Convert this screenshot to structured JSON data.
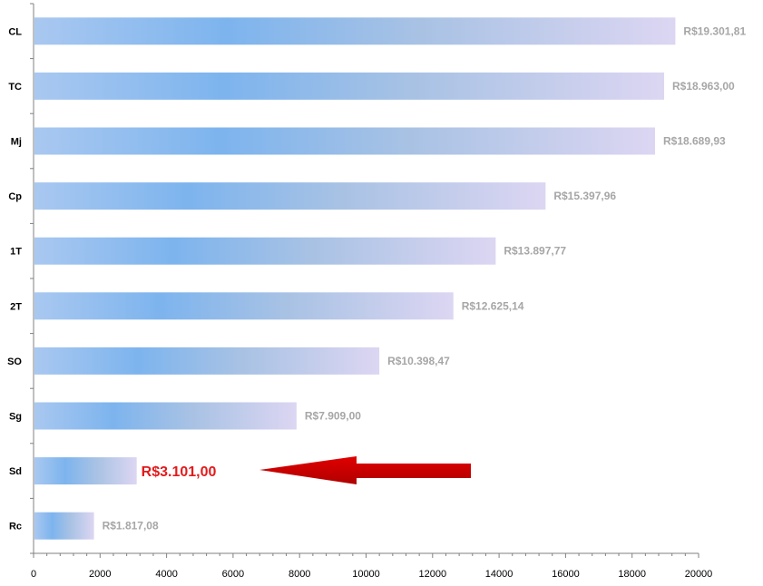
{
  "chart_data": {
    "type": "bar",
    "orientation": "horizontal",
    "title": "",
    "xlabel": "",
    "ylabel": "",
    "categories": [
      "CL",
      "TC",
      "Mj",
      "Cp",
      "1T",
      "2T",
      "SO",
      "Sg",
      "Sd",
      "Rc"
    ],
    "values": [
      19301.81,
      18963.0,
      18689.93,
      15397.96,
      13897.77,
      12625.14,
      10398.47,
      7909.0,
      3101.0,
      1817.08
    ],
    "data_labels": [
      "R$19.301,81",
      "R$18.963,00",
      "R$18.689,93",
      "R$15.397,96",
      "R$13.897,77",
      "R$12.625,14",
      "R$10.398,47",
      "R$7.909,00",
      "R$3.101,00",
      "R$1.817,08"
    ],
    "highlight_category": "Sd",
    "xlim": [
      0,
      20000
    ],
    "xticks": [
      "0",
      "2000",
      "4000",
      "6000",
      "8000",
      "10000",
      "12000",
      "14000",
      "16000",
      "18000",
      "20000"
    ],
    "grid": false,
    "legend": "none",
    "annotation": "red arrow pointing left at the Sd value label",
    "colors": {
      "bar_gradient_start": "#a9c8f0",
      "bar_gradient_mid": "#7db4ee",
      "bar_gradient_end": "#dcd6f2",
      "label": "#a6a6a6",
      "highlight_label": "#e31a1c",
      "arrow": "#cc0000",
      "axis": "#808080"
    }
  }
}
